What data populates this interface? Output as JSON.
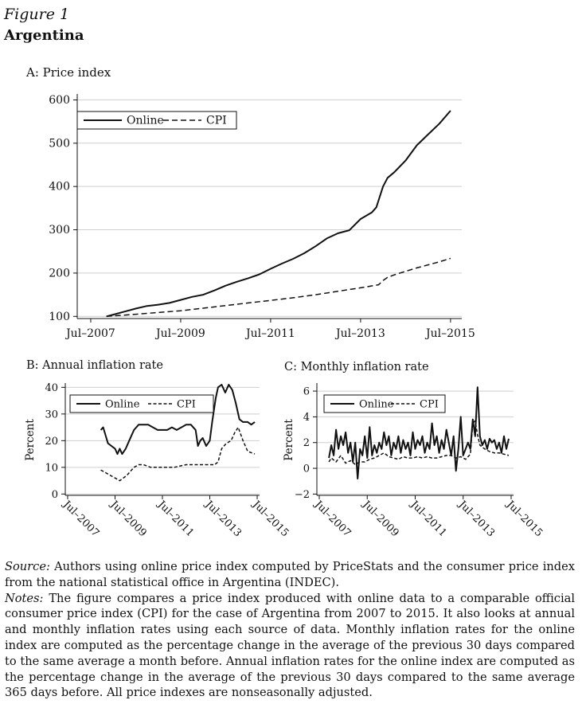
{
  "figure": {
    "label": "Figure 1",
    "title": "Argentina"
  },
  "caption": {
    "source_label": "Source:",
    "source_text": "Authors using online price index computed by PriceStats and the consumer price index from the national statistical office in Argentina (INDEC).",
    "notes_label": "Notes:",
    "notes_text": "The figure compares a price index produced with online data to a comparable official consumer price index (CPI) for the case of Argentina from 2007 to 2015. It also looks at annual and monthly inflation rates using each source of data. Monthly inflation rates for the online index are computed as the percentage change in the average of the previous 30 days compared to the same average a month before. Annual inflation rates for the online index are computed as the percentage change in the average of the previous 30 days compared to the same average 365 days before. All price indexes are nonseasonally adjusted."
  },
  "chart_data": [
    {
      "id": "A",
      "type": "line",
      "title": "A: Price index",
      "xlabel": "",
      "ylabel": "",
      "x_ticks": [
        "Jul–2007",
        "Jul–2009",
        "Jul–2011",
        "Jul–2013",
        "Jul–2015"
      ],
      "x_tick_values": [
        2007.5,
        2009.5,
        2011.5,
        2013.5,
        2015.5
      ],
      "xlim": [
        2007.2,
        2015.75
      ],
      "y_ticks": [
        100,
        200,
        300,
        400,
        500,
        600
      ],
      "ylim": [
        95,
        610
      ],
      "grid": true,
      "legend": {
        "placement": "top-left",
        "entries": [
          "Online",
          "CPI"
        ]
      },
      "series": [
        {
          "name": "Online",
          "style": "solid",
          "x": [
            2007.85,
            2008.0,
            2008.25,
            2008.5,
            2008.75,
            2009.0,
            2009.25,
            2009.5,
            2009.75,
            2010.0,
            2010.25,
            2010.5,
            2010.75,
            2011.0,
            2011.25,
            2011.5,
            2011.75,
            2012.0,
            2012.25,
            2012.5,
            2012.75,
            2013.0,
            2013.25,
            2013.5,
            2013.75,
            2013.85,
            2014.0,
            2014.1,
            2014.25,
            2014.5,
            2014.75,
            2015.0,
            2015.25,
            2015.5
          ],
          "y": [
            100,
            104,
            111,
            118,
            124,
            127,
            131,
            138,
            145,
            150,
            160,
            171,
            180,
            188,
            197,
            210,
            222,
            233,
            246,
            262,
            280,
            292,
            299,
            325,
            340,
            352,
            400,
            420,
            433,
            460,
            495,
            520,
            545,
            575
          ]
        },
        {
          "name": "CPI",
          "style": "dashed",
          "x": [
            2007.85,
            2008.0,
            2008.5,
            2009.0,
            2009.5,
            2010.0,
            2010.5,
            2011.0,
            2011.5,
            2012.0,
            2012.5,
            2013.0,
            2013.5,
            2013.9,
            2014.0,
            2014.1,
            2014.25,
            2014.5,
            2014.75,
            2015.0,
            2015.25,
            2015.5
          ],
          "y": [
            100,
            101,
            105,
            109,
            113,
            119,
            125,
            131,
            137,
            143,
            150,
            158,
            166,
            173,
            183,
            190,
            196,
            204,
            212,
            219,
            226,
            234
          ]
        }
      ]
    },
    {
      "id": "B",
      "type": "line",
      "title": "B: Annual inflation rate",
      "xlabel": "",
      "ylabel": "Percent",
      "x_ticks": [
        "Jul–2007",
        "Jul–2009",
        "Jul–2011",
        "Jul–2013",
        "Jul–2015"
      ],
      "x_tick_values": [
        2007.5,
        2009.5,
        2011.5,
        2013.5,
        2015.5
      ],
      "xlim": [
        2007.4,
        2015.6
      ],
      "y_ticks": [
        0,
        10,
        20,
        30,
        40
      ],
      "ylim": [
        -0.5,
        41
      ],
      "grid": true,
      "legend": {
        "placement": "top-left",
        "entries": [
          "Online",
          "CPI"
        ]
      },
      "series": [
        {
          "name": "Online",
          "style": "solid",
          "x": [
            2008.9,
            2009.0,
            2009.1,
            2009.2,
            2009.35,
            2009.5,
            2009.6,
            2009.7,
            2009.8,
            2009.95,
            2010.1,
            2010.3,
            2010.5,
            2010.7,
            2010.9,
            2011.1,
            2011.3,
            2011.5,
            2011.7,
            2011.9,
            2012.1,
            2012.3,
            2012.5,
            2012.7,
            2012.9,
            2013.0,
            2013.1,
            2013.2,
            2013.35,
            2013.5,
            2013.6,
            2013.75,
            2013.85,
            2014.0,
            2014.15,
            2014.3,
            2014.45,
            2014.6,
            2014.75,
            2014.9,
            2015.1,
            2015.25,
            2015.4
          ],
          "y": [
            24,
            25,
            22,
            19,
            18,
            17,
            15,
            17,
            15,
            17,
            20,
            24,
            26,
            26,
            26,
            25,
            24,
            24,
            24,
            25,
            24,
            25,
            26,
            26,
            24,
            18,
            20,
            21,
            18,
            20,
            27,
            36,
            40,
            41,
            38,
            41,
            39,
            34,
            28,
            27,
            27,
            26,
            27
          ]
        },
        {
          "name": "CPI",
          "style": "dashed",
          "x": [
            2008.9,
            2009.1,
            2009.3,
            2009.5,
            2009.7,
            2010.0,
            2010.3,
            2010.5,
            2010.7,
            2011.0,
            2011.5,
            2012.0,
            2012.5,
            2013.0,
            2013.5,
            2013.7,
            2013.85,
            2014.0,
            2014.2,
            2014.4,
            2014.55,
            2014.7,
            2014.9,
            2015.1,
            2015.4
          ],
          "y": [
            9,
            8,
            7,
            6,
            5,
            7,
            10,
            11,
            11,
            10,
            10,
            10,
            11,
            11,
            11,
            11,
            12,
            17,
            19,
            20,
            23,
            25,
            20,
            16,
            15
          ]
        }
      ]
    },
    {
      "id": "C",
      "type": "line",
      "title": "C: Monthly inflation rate",
      "xlabel": "",
      "ylabel": "Percent",
      "x_ticks": [
        "Jul–2007",
        "Jul–2009",
        "Jul–2011",
        "Jul–2013",
        "Jul–2015"
      ],
      "x_tick_values": [
        2007.5,
        2009.5,
        2011.5,
        2013.5,
        2015.5
      ],
      "xlim": [
        2007.4,
        2015.6
      ],
      "y_ticks": [
        -2,
        0,
        2,
        4,
        6
      ],
      "ylim": [
        -2.1,
        6.5
      ],
      "grid": true,
      "legend": {
        "placement": "top-left",
        "entries": [
          "Online",
          "CPI"
        ]
      },
      "series": [
        {
          "name": "Online",
          "style": "solid",
          "x": [
            2007.9,
            2008.0,
            2008.1,
            2008.2,
            2008.3,
            2008.4,
            2008.5,
            2008.6,
            2008.7,
            2008.8,
            2008.9,
            2009.0,
            2009.1,
            2009.2,
            2009.3,
            2009.4,
            2009.5,
            2009.6,
            2009.7,
            2009.8,
            2009.9,
            2010.0,
            2010.1,
            2010.2,
            2010.3,
            2010.4,
            2010.5,
            2010.6,
            2010.7,
            2010.8,
            2010.9,
            2011.0,
            2011.1,
            2011.2,
            2011.3,
            2011.4,
            2011.5,
            2011.6,
            2011.7,
            2011.8,
            2011.9,
            2012.0,
            2012.1,
            2012.2,
            2012.3,
            2012.4,
            2012.5,
            2012.6,
            2012.7,
            2012.8,
            2012.9,
            2013.0,
            2013.1,
            2013.2,
            2013.3,
            2013.4,
            2013.5,
            2013.6,
            2013.7,
            2013.8,
            2013.9,
            2014.0,
            2014.1,
            2014.2,
            2014.3,
            2014.4,
            2014.5,
            2014.6,
            2014.7,
            2014.8,
            2014.9,
            2015.0,
            2015.1,
            2015.2,
            2015.3,
            2015.4
          ],
          "y": [
            0.8,
            1.8,
            1.0,
            3.0,
            1.5,
            2.5,
            1.8,
            2.8,
            1.2,
            2.0,
            0.5,
            2.0,
            -0.8,
            1.5,
            1.0,
            2.5,
            0.8,
            3.2,
            1.0,
            1.8,
            1.2,
            2.0,
            1.5,
            2.8,
            1.8,
            2.5,
            1.0,
            2.0,
            1.5,
            2.5,
            1.2,
            2.2,
            1.5,
            2.0,
            1.0,
            2.8,
            1.5,
            2.2,
            1.8,
            2.5,
            1.2,
            2.0,
            1.5,
            3.5,
            1.8,
            2.5,
            1.2,
            2.2,
            1.5,
            3.0,
            2.0,
            1.0,
            2.5,
            -0.2,
            1.5,
            4.0,
            1.0,
            1.5,
            2.0,
            1.5,
            3.8,
            2.5,
            6.3,
            2.5,
            1.8,
            2.2,
            1.5,
            2.3,
            2.0,
            2.2,
            1.5,
            2.0,
            1.2,
            2.5,
            1.5,
            2.3
          ]
        },
        {
          "name": "CPI",
          "style": "dashed",
          "x": [
            2007.9,
            2008.0,
            2008.2,
            2008.4,
            2008.6,
            2008.8,
            2009.0,
            2009.2,
            2009.4,
            2009.6,
            2009.8,
            2010.0,
            2010.2,
            2010.4,
            2010.6,
            2010.8,
            2011.0,
            2011.2,
            2011.4,
            2011.6,
            2011.8,
            2012.0,
            2012.2,
            2012.4,
            2012.6,
            2012.8,
            2013.0,
            2013.2,
            2013.4,
            2013.6,
            2013.8,
            2013.9,
            2014.0,
            2014.1,
            2014.2,
            2014.4,
            2014.6,
            2014.8,
            2015.0,
            2015.2,
            2015.4
          ],
          "y": [
            0.5,
            0.8,
            0.5,
            1.0,
            0.4,
            0.6,
            0.3,
            0.5,
            0.5,
            0.7,
            0.8,
            1.0,
            1.2,
            0.9,
            0.8,
            0.7,
            0.9,
            0.8,
            0.8,
            0.9,
            0.8,
            0.9,
            0.8,
            0.8,
            0.9,
            1.0,
            1.0,
            0.8,
            0.9,
            0.7,
            1.1,
            3.5,
            3.7,
            2.6,
            1.8,
            1.5,
            1.3,
            1.2,
            1.2,
            1.1,
            1.0
          ]
        }
      ]
    }
  ]
}
